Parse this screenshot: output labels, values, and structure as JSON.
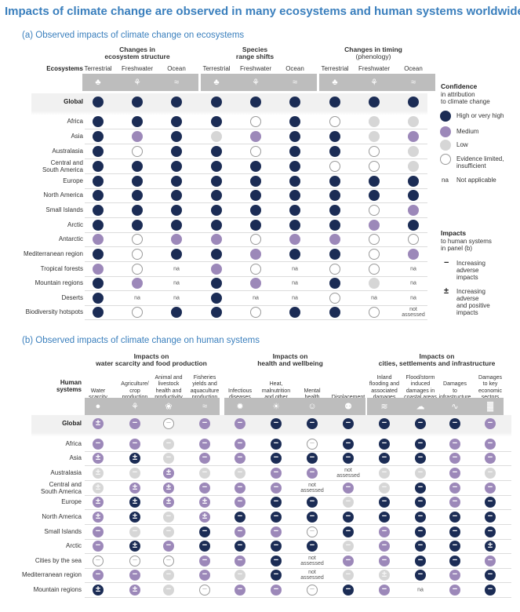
{
  "title": "Impacts of climate change are observed in many ecosystems and human systems worldwide",
  "colors": {
    "high": "#1b2c55",
    "medium": "#9c88b9",
    "low": "#d6d6d6",
    "limited": "#ffffff",
    "accent": "#3a7fbd"
  },
  "panel_a": {
    "title": "(a) Observed impacts of climate change on ecosystems",
    "row_header": "Ecosystems",
    "groups": [
      {
        "title": "Changes in",
        "title2": "ecosystem structure",
        "sub": ""
      },
      {
        "title": "Species",
        "title2": "range shifts",
        "sub": ""
      },
      {
        "title": "Changes in timing",
        "title2": "",
        "sub": "(phenology)"
      }
    ],
    "columns": [
      "Terrestrial",
      "Freshwater",
      "Ocean"
    ],
    "global_label": "Global",
    "rows": [
      "Africa",
      "Asia",
      "Australasia",
      "Central and",
      "Europe",
      "North America",
      "Small Islands",
      "Arctic",
      "Antarctic",
      "Mediterranean region",
      "Tropical forests",
      "Mountain regions",
      "Deserts",
      "Biodiversity hotspots"
    ],
    "row2": {
      "3": "South America"
    },
    "na": "na",
    "not_assessed": [
      "not",
      "assessed"
    ]
  },
  "legend": {
    "title": "Confidence",
    "subtitle": [
      "in attribution",
      "to climate change"
    ],
    "items": [
      "High or very high",
      "Medium",
      "Low",
      "Evidence limited,",
      "insufficient"
    ],
    "na_key": "na",
    "na_label": "Not applicable",
    "impacts_title": "Impacts",
    "impacts_sub": [
      "to human systems",
      "in panel (b)"
    ],
    "adverse": [
      "Increasing",
      "adverse",
      "impacts"
    ],
    "mixed": [
      "Increasing",
      "adverse",
      "and positive",
      "impacts"
    ]
  },
  "panel_b": {
    "title": "(b) Observed impacts of climate change on human systems",
    "row_header": [
      "Human",
      "systems"
    ],
    "groups": [
      {
        "title": "Impacts on",
        "title2": "water scarcity and food production"
      },
      {
        "title": "Impacts on",
        "title2": "health and wellbeing"
      },
      {
        "title": "Impacts on",
        "title2": "cities, settlements and infrastructure"
      }
    ],
    "columns": [
      [
        "Water",
        "scarcity"
      ],
      [
        "Agriculture/",
        "crop",
        "production"
      ],
      [
        "Animal and",
        "livestock",
        "health and",
        "productivity"
      ],
      [
        "Fisheries",
        "yields and",
        "aquaculture",
        "production"
      ],
      [
        "Infectious",
        "diseases"
      ],
      [
        "Heat,",
        "malnutrition",
        "and other"
      ],
      [
        "Mental",
        "health"
      ],
      [
        "Displacement"
      ],
      [
        "Inland",
        "flooding and",
        "associated",
        "damages"
      ],
      [
        "Flood/storm",
        "induced",
        "damages in",
        "coastal areas"
      ],
      [
        "Damages",
        "to",
        "infrastructure"
      ],
      [
        "Damages",
        "to key",
        "economic",
        "sectors"
      ]
    ],
    "global_label": "Global",
    "rows": [
      "Africa",
      "Asia",
      "Australasia",
      "Central and",
      "Europe",
      "North America",
      "Small Islands",
      "Arctic",
      "Cities by the sea",
      "Mediterranean region",
      "Mountain regions"
    ],
    "row2": {
      "3": "South America"
    }
  },
  "chart_data": [
    {
      "type": "table",
      "title": "(a) Observed impacts of climate change on ecosystems",
      "columns": [
        "Structure Terrestrial",
        "Structure Freshwater",
        "Structure Ocean",
        "Range Terrestrial",
        "Range Freshwater",
        "Range Ocean",
        "Timing Terrestrial",
        "Timing Freshwater",
        "Timing Ocean"
      ],
      "rows": [
        [
          "Global",
          "H",
          "H",
          "H",
          "H",
          "H",
          "H",
          "H",
          "H",
          "H"
        ],
        [
          "Africa",
          "H",
          "H",
          "H",
          "H",
          "E",
          "H",
          "E",
          "L",
          "L"
        ],
        [
          "Asia",
          "H",
          "M",
          "H",
          "L",
          "M",
          "H",
          "H",
          "L",
          "M"
        ],
        [
          "Australasia",
          "H",
          "E",
          "H",
          "H",
          "E",
          "H",
          "H",
          "E",
          "L"
        ],
        [
          "Central and South America",
          "H",
          "H",
          "H",
          "H",
          "H",
          "H",
          "E",
          "E",
          "L"
        ],
        [
          "Europe",
          "H",
          "H",
          "H",
          "H",
          "H",
          "H",
          "H",
          "H",
          "H"
        ],
        [
          "North America",
          "H",
          "H",
          "H",
          "H",
          "H",
          "H",
          "H",
          "H",
          "H"
        ],
        [
          "Small Islands",
          "H",
          "H",
          "H",
          "H",
          "H",
          "H",
          "H",
          "E",
          "M"
        ],
        [
          "Arctic",
          "H",
          "H",
          "H",
          "H",
          "H",
          "H",
          "H",
          "M",
          "H"
        ],
        [
          "Antarctic",
          "M",
          "E",
          "M",
          "M",
          "E",
          "M",
          "M",
          "E",
          "E"
        ],
        [
          "Mediterranean region",
          "H",
          "E",
          "H",
          "H",
          "M",
          "H",
          "H",
          "E",
          "M"
        ],
        [
          "Tropical forests",
          "M",
          "E",
          "na",
          "M",
          "E",
          "na",
          "E",
          "E",
          "na"
        ],
        [
          "Mountain regions",
          "H",
          "M",
          "na",
          "H",
          "M",
          "na",
          "H",
          "L",
          "na"
        ],
        [
          "Deserts",
          "H",
          "na",
          "na",
          "H",
          "na",
          "na",
          "E",
          "na",
          "na"
        ],
        [
          "Biodiversity hotspots",
          "H",
          "E",
          "H",
          "H",
          "E",
          "H",
          "H",
          "E",
          "not assessed"
        ]
      ],
      "legend": {
        "H": "High or very high",
        "M": "Medium",
        "L": "Low",
        "E": "Evidence limited, insufficient",
        "na": "Not applicable"
      }
    },
    {
      "type": "table",
      "title": "(b) Observed impacts of climate change on human systems",
      "columns": [
        "Water scarcity",
        "Agriculture/crop production",
        "Animal and livestock health and productivity",
        "Fisheries yields and aquaculture production",
        "Infectious diseases",
        "Heat, malnutrition and other",
        "Mental health",
        "Displacement",
        "Inland flooding and associated damages",
        "Flood/storm induced damages in coastal areas",
        "Damages to infrastructure",
        "Damages to key economic sectors"
      ],
      "rows": [
        [
          "Global",
          "M±",
          "M−",
          "E",
          "M−",
          "M−",
          "H−",
          "H−",
          "H−",
          "H−",
          "H−",
          "H−",
          "M−"
        ],
        [
          "Africa",
          "M−",
          "M−",
          "L−",
          "M−",
          "M−",
          "H−",
          "E",
          "H−",
          "H−",
          "H−",
          "M−",
          "M−"
        ],
        [
          "Asia",
          "M±",
          "H±",
          "L−",
          "M−",
          "M−",
          "H−",
          "H−",
          "H−",
          "H−",
          "H−",
          "M−",
          "M−"
        ],
        [
          "Australasia",
          "L±",
          "L−",
          "M±",
          "L−",
          "L−",
          "M−",
          "M−",
          "not assessed",
          "L−",
          "L−",
          "M−",
          "L−"
        ],
        [
          "Central and South America",
          "L±",
          "M±",
          "M±",
          "M−",
          "M−",
          "M−",
          "not assessed",
          "M−",
          "L−",
          "H−",
          "M−",
          "M−"
        ],
        [
          "Europe",
          "M±",
          "H±",
          "M±",
          "M±",
          "M−",
          "H−",
          "H−",
          "L−",
          "H−",
          "H−",
          "M−",
          "H−"
        ],
        [
          "North America",
          "M±",
          "H±",
          "L−",
          "M±",
          "H−",
          "H−",
          "H−",
          "H−",
          "H−",
          "H−",
          "H−",
          "H−"
        ],
        [
          "Small Islands",
          "M−",
          "L−",
          "L−",
          "H−",
          "M−",
          "M−",
          "E",
          "H−",
          "M−",
          "H−",
          "H−",
          "H−"
        ],
        [
          "Arctic",
          "M−",
          "H±",
          "M−",
          "H−",
          "H−",
          "H−",
          "H−",
          "L−",
          "M−",
          "H−",
          "H−",
          "H±"
        ],
        [
          "Cities by the sea",
          "E",
          "E",
          "E",
          "M−",
          "M−",
          "H−",
          "not assessed",
          "M−",
          "M−",
          "H−",
          "H−",
          "M−"
        ],
        [
          "Mediterranean region",
          "M−",
          "M−",
          "L−",
          "M−",
          "L−",
          "H−",
          "not assessed",
          "L−",
          "L±",
          "H−",
          "M−",
          "H−"
        ],
        [
          "Mountain regions",
          "H±",
          "M±",
          "L−",
          "E",
          "M−",
          "M−",
          "E",
          "H−",
          "M−",
          "na",
          "M−",
          "H−"
        ]
      ],
      "legend": {
        "H": "High or very high",
        "M": "Medium",
        "L": "Low",
        "E": "Evidence limited, insufficient",
        "−": "Increasing adverse impacts",
        "±": "Increasing adverse and positive impacts"
      }
    }
  ]
}
